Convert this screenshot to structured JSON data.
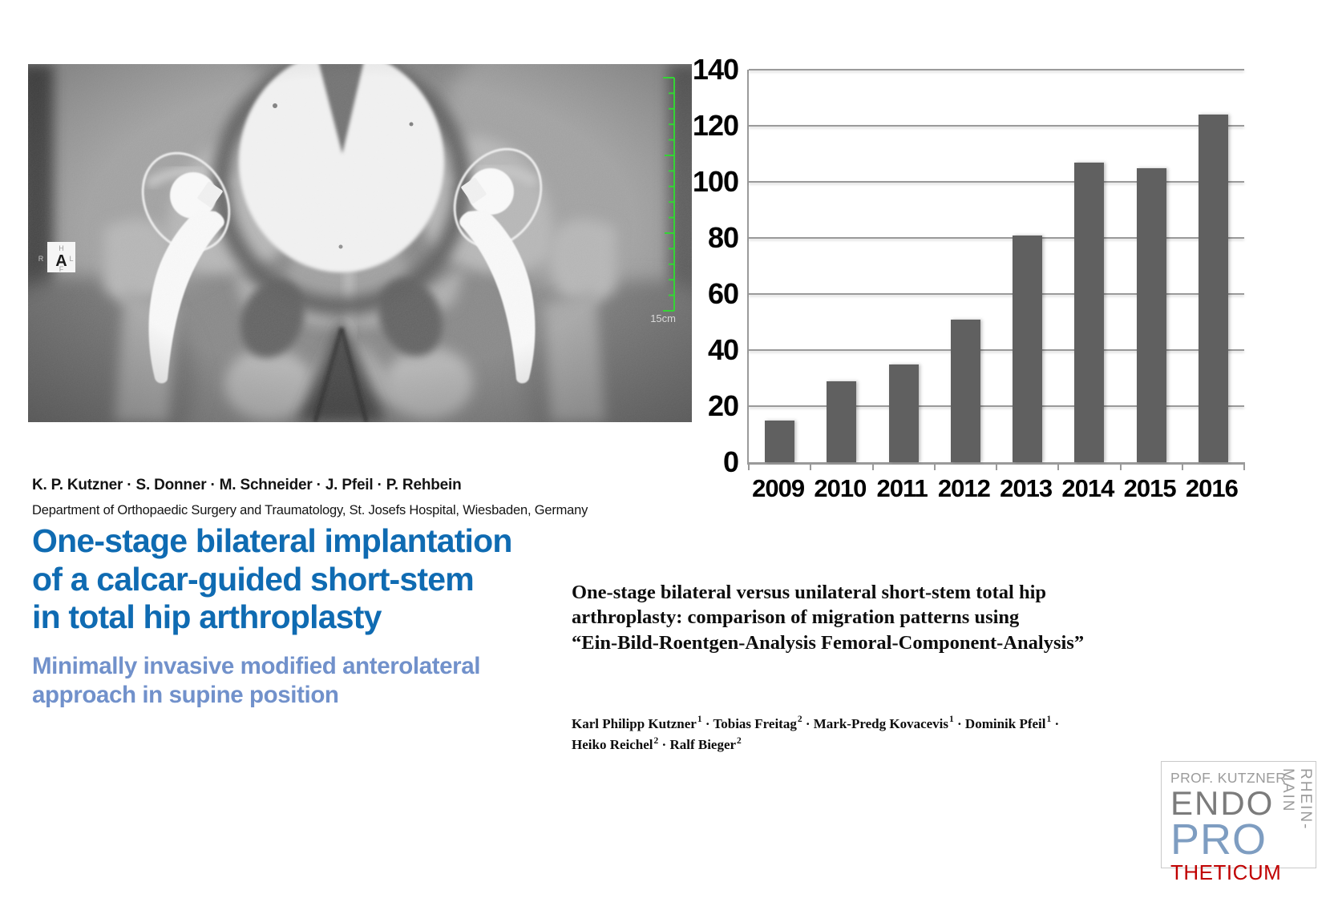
{
  "xray": {
    "marker": {
      "center": "A",
      "top": "H",
      "bottom": "F",
      "left": "R",
      "right": "L"
    },
    "ruler_label": "15cm",
    "ruler_color": "#35d435"
  },
  "left_column": {
    "authors": "K. P. Kutzner · S. Donner · M. Schneider · J. Pfeil · P. Rehbein",
    "affiliation": "Department of Orthopaedic Surgery and Traumatology, St. Josefs Hospital, Wiesbaden, Germany",
    "title": "One-stage bilateral implantation\nof a calcar-guided short-stem\nin total hip arthroplasty",
    "subtitle": "Minimally invasive modified anterolateral\napproach in supine position",
    "title_color": "#0f6bb2",
    "subtitle_color": "#7191cb"
  },
  "right_column": {
    "paper_title": "One-stage bilateral versus unilateral short-stem total hip\narthroplasty: comparison of migration patterns using\n“Ein-Bild-Roentgen-Analysis Femoral-Component-Analysis”",
    "authors": [
      {
        "name": "Karl Philipp Kutzner",
        "sup": "1"
      },
      {
        "name": "Tobias Freitag",
        "sup": "2"
      },
      {
        "name": "Mark-Predg Kovacevis",
        "sup": "1"
      },
      {
        "name": "Dominik Pfeil",
        "sup": "1",
        "break_after": true
      },
      {
        "name": "Heiko Reichel",
        "sup": "2"
      },
      {
        "name": "Ralf Bieger",
        "sup": "2"
      }
    ],
    "author_separator": "·"
  },
  "chart_data": {
    "type": "bar",
    "categories": [
      "2009",
      "2010",
      "2011",
      "2012",
      "2013",
      "2014",
      "2015",
      "2016"
    ],
    "values": [
      15,
      29,
      35,
      51,
      81,
      107,
      105,
      124
    ],
    "title": "",
    "xlabel": "",
    "ylabel": "",
    "ylim": [
      0,
      140
    ],
    "yticks": [
      0,
      20,
      40,
      60,
      80,
      100,
      120,
      140
    ],
    "grid": true,
    "legend": false,
    "bar_color": "#606060",
    "gridline_color": "#9a9a9a"
  },
  "logo": {
    "line1": "PROF. KUTZNER",
    "line2": "ENDO",
    "line3": "PRO",
    "line4": "THETICUM",
    "vertical": "RHEIN-MAIN",
    "colors": {
      "gray": "#9b9b9b",
      "endo": "#7b7b7b",
      "pro": "#7e9dc1",
      "theticum": "#c00000"
    }
  }
}
